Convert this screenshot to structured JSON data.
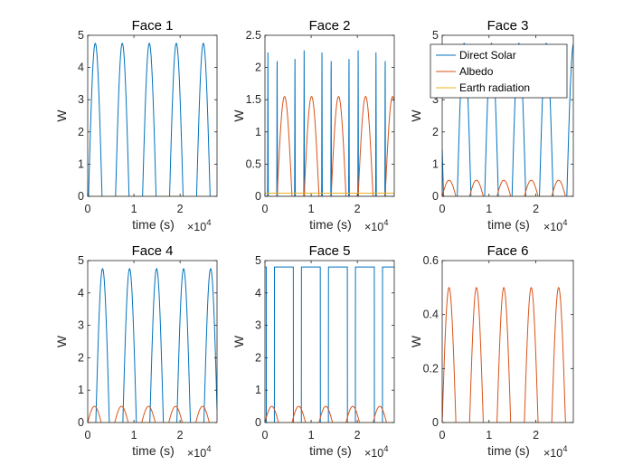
{
  "chart_data": {
    "type": "line",
    "layout": "2x3 subplots",
    "shared": {
      "xlabel": "time (s)",
      "ylabel": "W",
      "xlim": [
        0,
        2.8
      ],
      "x_multiplier_base": "×10",
      "x_multiplier_exp": "4",
      "xticks": [
        0,
        1,
        2
      ]
    },
    "series_styles": [
      {
        "name": "Direct Solar",
        "color": "#0072BD"
      },
      {
        "name": "Albedo",
        "color": "#D95319"
      },
      {
        "name": "Earth radiation",
        "color": "#EDB120"
      }
    ],
    "legend": {
      "placement": "top-right of Face 3",
      "entries": [
        "Direct Solar",
        "Albedo",
        "Earth radiation"
      ]
    },
    "subplots": [
      {
        "title": "Face 1",
        "ylim": [
          0,
          5
        ],
        "yticks": [
          0,
          1,
          2,
          3,
          4,
          5
        ],
        "series": [
          {
            "name": "Direct Solar",
            "shape": "cosine-lobes",
            "peak": 4.75,
            "period": 0.585,
            "start_phase": 0.03,
            "on_fraction": 0.5
          },
          {
            "name": "Albedo",
            "shape": "zero",
            "value": 0
          },
          {
            "name": "Earth radiation",
            "shape": "zero",
            "value": 0
          }
        ]
      },
      {
        "title": "Face 2",
        "ylim": [
          0,
          2.5
        ],
        "yticks": [
          0,
          0.5,
          1,
          1.5,
          2,
          2.5
        ],
        "series": [
          {
            "name": "Direct Solar",
            "shape": "spikes",
            "peak": 2.35,
            "period": 0.585,
            "offsets": [
              0.11,
              0.45
            ]
          },
          {
            "name": "Albedo",
            "shape": "cosine-lobes",
            "peak": 1.55,
            "period": 0.585,
            "start_phase": 0.45,
            "on_fraction": 0.55
          },
          {
            "name": "Earth radiation",
            "shape": "constant",
            "value": 0.05
          }
        ]
      },
      {
        "title": "Face 3",
        "ylim": [
          0,
          5
        ],
        "yticks": [
          0,
          1,
          2,
          3,
          4,
          5
        ],
        "series": [
          {
            "name": "Direct Solar",
            "shape": "cosine-lobes",
            "peak": 4.75,
            "period": 0.585,
            "start_phase": 0.55,
            "on_fraction": 0.5
          },
          {
            "name": "Albedo",
            "shape": "cosine-lobes",
            "peak": 0.5,
            "period": 0.585,
            "start_phase": 0.0,
            "on_fraction": 0.5
          },
          {
            "name": "Earth radiation",
            "shape": "zero",
            "value": 0
          }
        ]
      },
      {
        "title": "Face 4",
        "ylim": [
          0,
          5
        ],
        "yticks": [
          0,
          1,
          2,
          3,
          4,
          5
        ],
        "series": [
          {
            "name": "Direct Solar",
            "shape": "cosine-lobes",
            "peak": 4.75,
            "period": 0.585,
            "start_phase": 0.3,
            "on_fraction": 0.5
          },
          {
            "name": "Albedo",
            "shape": "cosine-lobes",
            "peak": 0.5,
            "period": 0.585,
            "start_phase": 0.0,
            "on_fraction": 0.5
          },
          {
            "name": "Earth radiation",
            "shape": "zero",
            "value": 0
          }
        ]
      },
      {
        "title": "Face 5",
        "ylim": [
          0,
          5
        ],
        "yticks": [
          0,
          1,
          2,
          3,
          4,
          5
        ],
        "series": [
          {
            "name": "Direct Solar",
            "shape": "square",
            "high": 4.8,
            "low": 0,
            "period": 0.585,
            "low_fraction": 0.3,
            "low_start": 0.05
          },
          {
            "name": "Albedo",
            "shape": "cosine-lobes",
            "peak": 0.5,
            "period": 0.585,
            "start_phase": 0.0,
            "on_fraction": 0.5
          },
          {
            "name": "Earth radiation",
            "shape": "zero",
            "value": 0
          }
        ]
      },
      {
        "title": "Face 6",
        "ylim": [
          0,
          0.6
        ],
        "yticks": [
          0,
          0.2,
          0.4,
          0.6
        ],
        "series": [
          {
            "name": "Direct Solar",
            "shape": "zero",
            "value": 0
          },
          {
            "name": "Albedo",
            "shape": "cosine-lobes",
            "peak": 0.5,
            "period": 0.585,
            "start_phase": 0.0,
            "on_fraction": 0.5
          },
          {
            "name": "Earth radiation",
            "shape": "zero",
            "value": 0
          }
        ]
      }
    ]
  }
}
